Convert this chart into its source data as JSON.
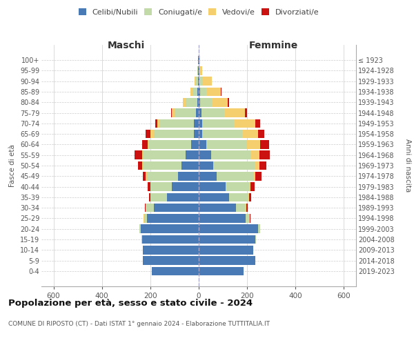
{
  "age_groups": [
    "0-4",
    "5-9",
    "10-14",
    "15-19",
    "20-24",
    "25-29",
    "30-34",
    "35-39",
    "40-44",
    "45-49",
    "50-54",
    "55-59",
    "60-64",
    "65-69",
    "70-74",
    "75-79",
    "80-84",
    "85-89",
    "90-94",
    "95-99",
    "100+"
  ],
  "birth_years": [
    "2019-2023",
    "2014-2018",
    "2009-2013",
    "2004-2008",
    "1999-2003",
    "1994-1998",
    "1989-1993",
    "1984-1988",
    "1979-1983",
    "1974-1978",
    "1969-1973",
    "1964-1968",
    "1959-1963",
    "1954-1958",
    "1949-1953",
    "1944-1948",
    "1939-1943",
    "1934-1938",
    "1929-1933",
    "1924-1928",
    "≤ 1923"
  ],
  "males": {
    "celibi": [
      195,
      230,
      230,
      235,
      240,
      215,
      185,
      130,
      110,
      85,
      70,
      55,
      30,
      20,
      20,
      10,
      5,
      5,
      3,
      2,
      2
    ],
    "coniugati": [
      0,
      0,
      0,
      2,
      5,
      10,
      35,
      70,
      90,
      130,
      160,
      175,
      175,
      165,
      140,
      90,
      50,
      20,
      8,
      3,
      2
    ],
    "vedovi": [
      0,
      0,
      0,
      0,
      0,
      2,
      0,
      0,
      0,
      5,
      5,
      5,
      5,
      15,
      10,
      10,
      10,
      10,
      5,
      0,
      0
    ],
    "divorziati": [
      0,
      0,
      0,
      0,
      0,
      2,
      2,
      5,
      10,
      10,
      15,
      30,
      25,
      20,
      10,
      5,
      0,
      0,
      0,
      0,
      0
    ]
  },
  "females": {
    "nubili": [
      185,
      235,
      225,
      235,
      245,
      195,
      155,
      125,
      110,
      75,
      60,
      50,
      30,
      15,
      15,
      10,
      5,
      5,
      3,
      2,
      2
    ],
    "coniugate": [
      0,
      0,
      0,
      3,
      8,
      15,
      40,
      80,
      100,
      150,
      170,
      165,
      170,
      165,
      130,
      95,
      50,
      25,
      15,
      5,
      2
    ],
    "vedove": [
      0,
      0,
      0,
      0,
      0,
      2,
      2,
      3,
      5,
      10,
      20,
      35,
      55,
      65,
      90,
      85,
      65,
      60,
      35,
      8,
      2
    ],
    "divorziate": [
      0,
      0,
      0,
      0,
      0,
      2,
      5,
      10,
      15,
      25,
      30,
      45,
      35,
      25,
      20,
      10,
      5,
      5,
      0,
      0,
      0
    ]
  },
  "colors": {
    "celibi_nubili": "#4a7ab5",
    "coniugati": "#c2d9a8",
    "vedovi": "#f5ce6e",
    "divorziati": "#cc1111"
  },
  "xlim": 650,
  "title": "Popolazione per età, sesso e stato civile - 2024",
  "subtitle": "COMUNE DI RIPOSTO (CT) - Dati ISTAT 1° gennaio 2024 - Elaborazione TUTTITALIA.IT",
  "ylabel_left": "Fasce di età",
  "ylabel_right": "Anni di nascita",
  "xlabel_left": "Maschi",
  "xlabel_right": "Femmine"
}
